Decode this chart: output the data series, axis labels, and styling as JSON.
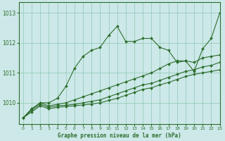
{
  "title": "Graphe pression niveau de la mer (hPa)",
  "background_color": "#cce8e8",
  "grid_color": "#99ccbb",
  "line_color": "#2d6e2d",
  "xlim": [
    -0.5,
    23
  ],
  "ylim": [
    1009.3,
    1013.35
  ],
  "yticks": [
    1010,
    1011,
    1012,
    1013
  ],
  "xticks": [
    0,
    1,
    2,
    3,
    4,
    5,
    6,
    7,
    8,
    9,
    10,
    11,
    12,
    13,
    14,
    15,
    16,
    17,
    18,
    19,
    20,
    21,
    22,
    23
  ],
  "series": [
    {
      "x": [
        0,
        1,
        2,
        3,
        4,
        5,
        6,
        7,
        8,
        9,
        10,
        11,
        12,
        13,
        14,
        15,
        16,
        17,
        18,
        19,
        20,
        21,
        22,
        23
      ],
      "y": [
        1009.5,
        1009.8,
        1010.0,
        1010.0,
        1010.15,
        1010.55,
        1011.15,
        1011.55,
        1011.75,
        1011.85,
        1012.25,
        1012.55,
        1012.05,
        1012.05,
        1012.15,
        1012.15,
        1011.85,
        1011.75,
        1011.35,
        1011.4,
        1011.05,
        1011.8,
        1012.15,
        1013.0
      ]
    },
    {
      "x": [
        0,
        1,
        2,
        3,
        4,
        5,
        6,
        7,
        8,
        9,
        10,
        11,
        12,
        13,
        14,
        15,
        16,
        17,
        18,
        19,
        20,
        21,
        22,
        23
      ],
      "y": [
        1009.5,
        1009.8,
        1010.0,
        1009.9,
        1009.95,
        1010.0,
        1010.1,
        1010.2,
        1010.3,
        1010.4,
        1010.5,
        1010.6,
        1010.7,
        1010.8,
        1010.9,
        1011.0,
        1011.15,
        1011.3,
        1011.4,
        1011.4,
        1011.35,
        1011.5,
        1011.55,
        1011.6
      ]
    },
    {
      "x": [
        0,
        1,
        2,
        3,
        4,
        5,
        6,
        7,
        8,
        9,
        10,
        11,
        12,
        13,
        14,
        15,
        16,
        17,
        18,
        19,
        20,
        21,
        22,
        23
      ],
      "y": [
        1009.5,
        1009.75,
        1009.95,
        1009.85,
        1009.9,
        1009.92,
        1009.95,
        1010.0,
        1010.05,
        1010.1,
        1010.2,
        1010.3,
        1010.4,
        1010.5,
        1010.6,
        1010.65,
        1010.75,
        1010.85,
        1010.95,
        1011.05,
        1011.1,
        1011.2,
        1011.25,
        1011.35
      ]
    },
    {
      "x": [
        0,
        1,
        2,
        3,
        4,
        5,
        6,
        7,
        8,
        9,
        10,
        11,
        12,
        13,
        14,
        15,
        16,
        17,
        18,
        19,
        20,
        21,
        22,
        23
      ],
      "y": [
        1009.5,
        1009.7,
        1009.9,
        1009.8,
        1009.85,
        1009.88,
        1009.9,
        1009.93,
        1009.96,
        1010.0,
        1010.08,
        1010.15,
        1010.25,
        1010.35,
        1010.45,
        1010.5,
        1010.6,
        1010.68,
        1010.78,
        1010.88,
        1010.95,
        1011.0,
        1011.05,
        1011.1
      ]
    }
  ]
}
